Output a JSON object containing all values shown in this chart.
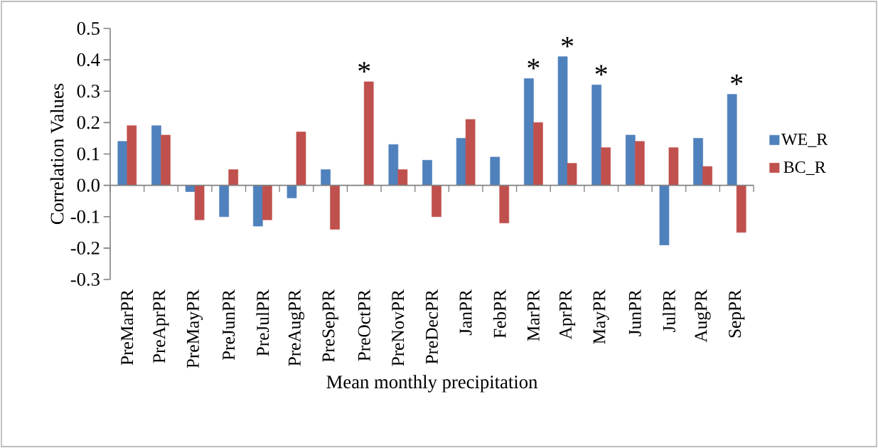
{
  "chart_data": {
    "type": "bar",
    "xlabel": "Mean monthly precipitation",
    "ylabel": "Correlation Values",
    "categories": [
      "PreMarPR",
      "PreAprPR",
      "PreMayPR",
      "PreJunPR",
      "PreJulPR",
      "PreAugPR",
      "PreSepPR",
      "PreOctPR",
      "PreNovPR",
      "PreDecPR",
      "JanPR",
      "FebPR",
      "MarPR",
      "AprPR",
      "MayPR",
      "JunPR",
      "JulPR",
      "AugPR",
      "SepPR"
    ],
    "series": [
      {
        "name": "WE_R",
        "color": "#4f81bd",
        "values": [
          0.14,
          0.19,
          -0.02,
          -0.1,
          -0.13,
          -0.04,
          0.05,
          0.0,
          0.13,
          0.08,
          0.15,
          0.09,
          0.34,
          0.41,
          0.32,
          0.16,
          -0.19,
          0.15,
          0.29
        ]
      },
      {
        "name": "BC_R",
        "color": "#c0504d",
        "values": [
          0.19,
          0.16,
          -0.11,
          0.05,
          -0.11,
          0.17,
          -0.14,
          0.33,
          0.05,
          -0.1,
          0.21,
          -0.12,
          0.2,
          0.07,
          0.12,
          0.14,
          0.12,
          0.06,
          -0.15
        ]
      }
    ],
    "ylim": [
      -0.3,
      0.5
    ],
    "yticks": [
      {
        "value": -0.3,
        "label": "-0.3"
      },
      {
        "value": -0.2,
        "label": "-0.2"
      },
      {
        "value": -0.1,
        "label": "-0.1"
      },
      {
        "value": 0,
        "label": "0.0"
      },
      {
        "value": 0.1,
        "label": "0.1"
      },
      {
        "value": 0.2,
        "label": "0.2"
      },
      {
        "value": 0.3,
        "label": "0.3"
      },
      {
        "value": 0.4,
        "label": "0.4"
      },
      {
        "value": 0.5,
        "label": "0.5"
      }
    ],
    "annotations": [
      {
        "text": "*",
        "x": "PreOctPR",
        "y": 0.33
      },
      {
        "text": "*",
        "x": "MarPR",
        "y": 0.34
      },
      {
        "text": "*",
        "x": "AprPR",
        "y": 0.41
      },
      {
        "text": "*",
        "x": "MayPR",
        "y": 0.32
      },
      {
        "text": "*",
        "x": "SepPR",
        "y": 0.29
      }
    ],
    "legend": "right"
  }
}
